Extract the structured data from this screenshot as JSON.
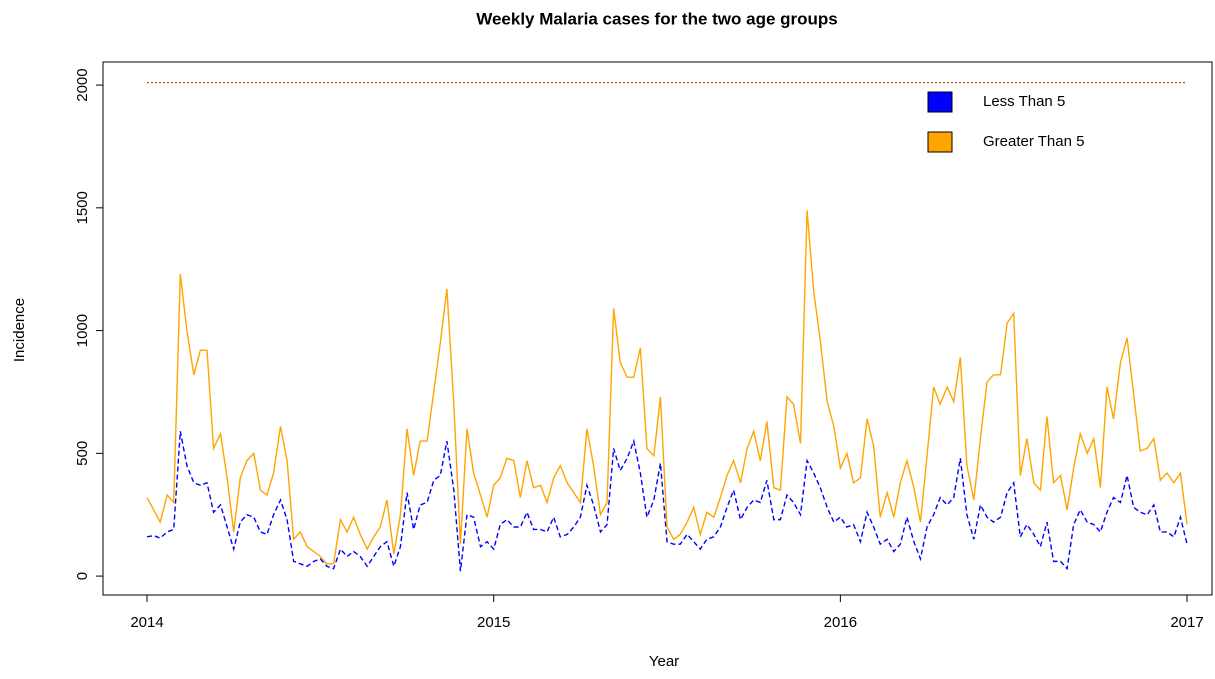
{
  "chart_data": {
    "type": "line",
    "title": "Weekly Malaria cases for the two age groups",
    "x_label": "Year",
    "y_label": "Incidence",
    "x": [
      2014,
      2014.019,
      2014.038,
      2014.058,
      2014.077,
      2014.096,
      2014.115,
      2014.135,
      2014.154,
      2014.173,
      2014.192,
      2014.212,
      2014.231,
      2014.25,
      2014.269,
      2014.288,
      2014.308,
      2014.327,
      2014.346,
      2014.365,
      2014.385,
      2014.404,
      2014.423,
      2014.442,
      2014.462,
      2014.481,
      2014.5,
      2014.519,
      2014.538,
      2014.558,
      2014.577,
      2014.596,
      2014.615,
      2014.635,
      2014.654,
      2014.673,
      2014.692,
      2014.712,
      2014.731,
      2014.75,
      2014.769,
      2014.788,
      2014.808,
      2014.827,
      2014.846,
      2014.865,
      2014.885,
      2014.904,
      2014.923,
      2014.942,
      2014.962,
      2014.981,
      2015,
      2015.019,
      2015.038,
      2015.058,
      2015.077,
      2015.096,
      2015.115,
      2015.135,
      2015.154,
      2015.173,
      2015.192,
      2015.212,
      2015.231,
      2015.25,
      2015.269,
      2015.288,
      2015.308,
      2015.327,
      2015.346,
      2015.365,
      2015.385,
      2015.404,
      2015.423,
      2015.442,
      2015.462,
      2015.481,
      2015.5,
      2015.519,
      2015.538,
      2015.558,
      2015.577,
      2015.596,
      2015.615,
      2015.635,
      2015.654,
      2015.673,
      2015.692,
      2015.712,
      2015.731,
      2015.75,
      2015.769,
      2015.788,
      2015.808,
      2015.827,
      2015.846,
      2015.865,
      2015.885,
      2015.904,
      2015.923,
      2015.942,
      2015.962,
      2015.981,
      2016,
      2016.019,
      2016.038,
      2016.058,
      2016.077,
      2016.096,
      2016.115,
      2016.135,
      2016.154,
      2016.173,
      2016.192,
      2016.212,
      2016.231,
      2016.25,
      2016.269,
      2016.288,
      2016.308,
      2016.327,
      2016.346,
      2016.365,
      2016.385,
      2016.404,
      2016.423,
      2016.442,
      2016.462,
      2016.481,
      2016.5,
      2016.519,
      2016.538,
      2016.558,
      2016.577,
      2016.596,
      2016.615,
      2016.635,
      2016.654,
      2016.673,
      2016.692,
      2016.712,
      2016.731,
      2016.75,
      2016.769,
      2016.788,
      2016.808,
      2016.827,
      2016.846,
      2016.865,
      2016.885,
      2016.904,
      2016.923,
      2016.942,
      2016.962,
      2016.981,
      2017
    ],
    "series": [
      {
        "name": "Less Than 5",
        "color": "#0000ff",
        "linestyle": "dashed",
        "values": [
          160,
          165,
          155,
          180,
          190,
          590,
          450,
          380,
          370,
          380,
          260,
          290,
          200,
          110,
          220,
          250,
          240,
          180,
          170,
          250,
          310,
          230,
          60,
          50,
          40,
          60,
          70,
          40,
          30,
          110,
          80,
          100,
          80,
          40,
          80,
          120,
          140,
          40,
          120,
          340,
          190,
          290,
          300,
          390,
          410,
          550,
          350,
          20,
          250,
          240,
          120,
          140,
          110,
          210,
          230,
          200,
          200,
          260,
          190,
          190,
          180,
          240,
          160,
          170,
          200,
          240,
          370,
          290,
          180,
          210,
          520,
          430,
          480,
          550,
          420,
          240,
          310,
          460,
          140,
          130,
          130,
          170,
          140,
          110,
          150,
          160,
          200,
          280,
          350,
          230,
          280,
          310,
          300,
          390,
          230,
          230,
          330,
          300,
          250,
          470,
          420,
          360,
          280,
          220,
          240,
          200,
          210,
          140,
          260,
          200,
          130,
          150,
          100,
          130,
          240,
          140,
          70,
          200,
          250,
          320,
          290,
          320,
          480,
          250,
          150,
          290,
          240,
          220,
          240,
          340,
          380,
          160,
          210,
          170,
          120,
          220,
          60,
          60,
          30,
          210,
          270,
          220,
          210,
          180,
          260,
          320,
          300,
          410,
          280,
          260,
          250,
          290,
          180,
          180,
          160,
          240,
          130
        ]
      },
      {
        "name": "Greater Than 5",
        "color": "#ffa500",
        "linestyle": "solid",
        "values": [
          320,
          270,
          220,
          330,
          300,
          1230,
          1000,
          820,
          920,
          920,
          520,
          580,
          400,
          180,
          400,
          470,
          500,
          350,
          330,
          420,
          610,
          470,
          150,
          180,
          120,
          100,
          80,
          50,
          50,
          230,
          180,
          240,
          170,
          110,
          160,
          200,
          310,
          90,
          250,
          600,
          410,
          550,
          550,
          750,
          950,
          1170,
          700,
          130,
          600,
          420,
          330,
          240,
          370,
          400,
          480,
          470,
          320,
          470,
          360,
          370,
          300,
          400,
          450,
          380,
          340,
          300,
          600,
          450,
          250,
          300,
          1090,
          870,
          810,
          810,
          930,
          520,
          490,
          730,
          200,
          150,
          170,
          220,
          280,
          170,
          260,
          240,
          320,
          410,
          470,
          380,
          520,
          590,
          470,
          630,
          360,
          350,
          730,
          700,
          540,
          1490,
          1160,
          960,
          710,
          610,
          440,
          500,
          380,
          400,
          640,
          530,
          240,
          340,
          240,
          380,
          470,
          360,
          220,
          490,
          770,
          700,
          770,
          710,
          890,
          450,
          310,
          560,
          790,
          820,
          820,
          1030,
          1070,
          410,
          560,
          380,
          350,
          650,
          380,
          410,
          270,
          440,
          580,
          500,
          560,
          360,
          770,
          640,
          870,
          970,
          740,
          510,
          520,
          560,
          390,
          420,
          380,
          420,
          210
        ]
      }
    ],
    "reference_line": {
      "value": 2010,
      "color": "#996600",
      "linestyle": "dotted"
    },
    "xlim": [
      2013.873,
      2017.072
    ],
    "ylim": [
      -77,
      2094
    ],
    "xticks": [
      2014,
      2015,
      2016,
      2017
    ],
    "yticks": [
      0,
      500,
      1000,
      1500,
      2000
    ],
    "legend": "top-right"
  }
}
